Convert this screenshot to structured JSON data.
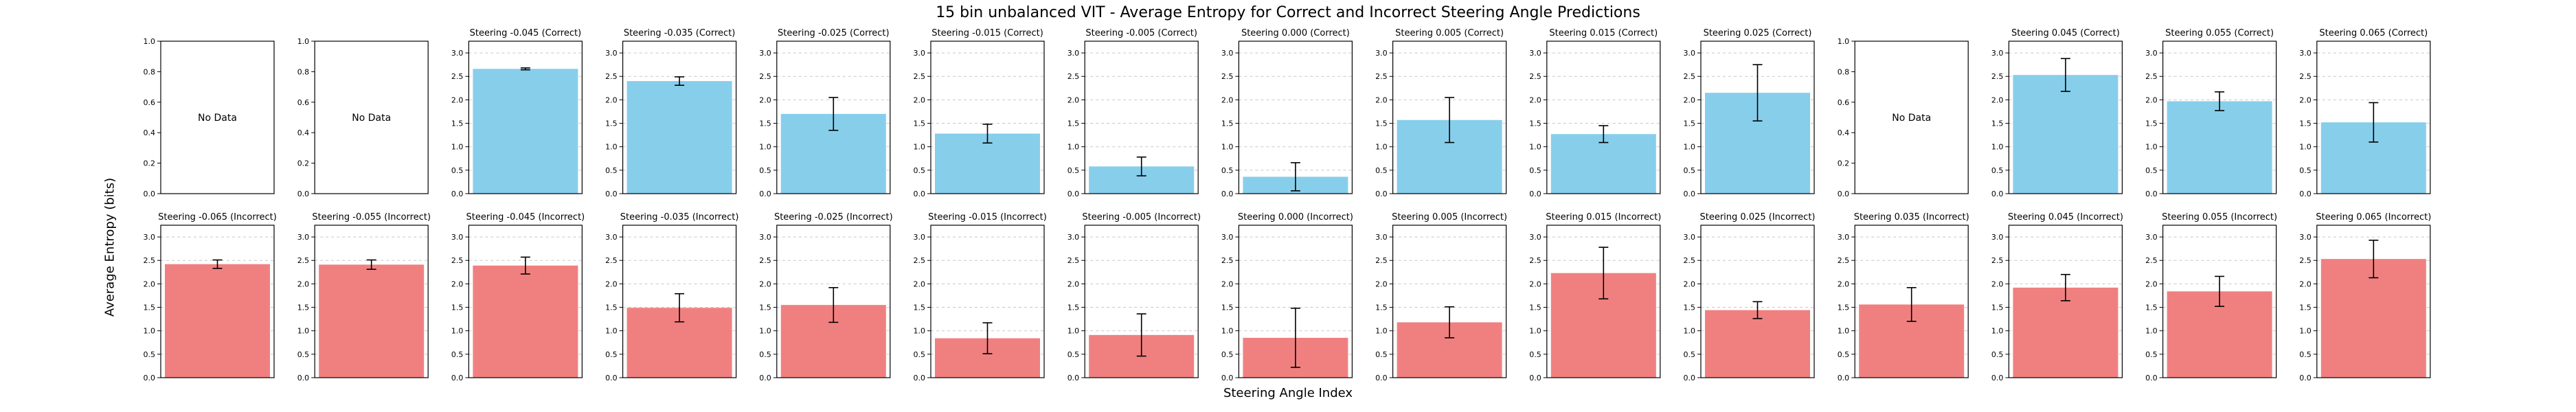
{
  "figure": {
    "title": "15 bin unbalanced VIT - Average Entropy for Correct and Incorrect Steering Angle Predictions",
    "ylabel": "Average Entropy (bits)",
    "xlabel": "Steering Angle Index",
    "no_data_text": "No Data"
  },
  "colors": {
    "correct": "#87ceeb",
    "incorrect": "#f08080",
    "axes": "#000000",
    "grid": "#b0b0b0"
  },
  "chart_data": {
    "type": "bar",
    "layout": "2 rows x 15 subplots, one bar each with error bar",
    "grid": "y dashed",
    "ylim_default": [
      0,
      3.25
    ],
    "ylim_empty": [
      0,
      1.0
    ],
    "yticks_default": [
      0.0,
      0.5,
      1.0,
      1.5,
      2.0,
      2.5,
      3.0
    ],
    "yticks_empty": [
      0.0,
      0.2,
      0.4,
      0.6,
      0.8,
      1.0
    ],
    "rows": [
      {
        "name": "Correct",
        "subplots": [
          {
            "title": "",
            "value": null,
            "err": null
          },
          {
            "title": "",
            "value": null,
            "err": null
          },
          {
            "title": "Steering -0.045 (Correct)",
            "value": 2.66,
            "err": 0.02
          },
          {
            "title": "Steering -0.035 (Correct)",
            "value": 2.4,
            "err": 0.09
          },
          {
            "title": "Steering -0.025 (Correct)",
            "value": 1.7,
            "err": 0.35
          },
          {
            "title": "Steering -0.015 (Correct)",
            "value": 1.28,
            "err": 0.2
          },
          {
            "title": "Steering -0.005 (Correct)",
            "value": 0.58,
            "err": 0.2
          },
          {
            "title": "Steering 0.000 (Correct)",
            "value": 0.36,
            "err": 0.3
          },
          {
            "title": "Steering 0.005 (Correct)",
            "value": 1.57,
            "err": 0.48
          },
          {
            "title": "Steering 0.015 (Correct)",
            "value": 1.27,
            "err": 0.18
          },
          {
            "title": "Steering 0.025 (Correct)",
            "value": 2.15,
            "err": 0.6
          },
          {
            "title": "",
            "value": null,
            "err": null
          },
          {
            "title": "Steering 0.045 (Correct)",
            "value": 2.53,
            "err": 0.35
          },
          {
            "title": "Steering 0.055 (Correct)",
            "value": 1.97,
            "err": 0.2
          },
          {
            "title": "Steering 0.065 (Correct)",
            "value": 1.52,
            "err": 0.42
          }
        ]
      },
      {
        "name": "Incorrect",
        "subplots": [
          {
            "title": "Steering -0.065 (Incorrect)",
            "value": 2.42,
            "err": 0.09
          },
          {
            "title": "Steering -0.055 (Incorrect)",
            "value": 2.41,
            "err": 0.1
          },
          {
            "title": "Steering -0.045 (Incorrect)",
            "value": 2.39,
            "err": 0.18
          },
          {
            "title": "Steering -0.035 (Incorrect)",
            "value": 1.49,
            "err": 0.3
          },
          {
            "title": "Steering -0.025 (Incorrect)",
            "value": 1.55,
            "err": 0.37
          },
          {
            "title": "Steering -0.015 (Incorrect)",
            "value": 0.84,
            "err": 0.33
          },
          {
            "title": "Steering -0.005 (Incorrect)",
            "value": 0.91,
            "err": 0.45
          },
          {
            "title": "Steering 0.000 (Incorrect)",
            "value": 0.85,
            "err": 0.63
          },
          {
            "title": "Steering 0.005 (Incorrect)",
            "value": 1.18,
            "err": 0.33
          },
          {
            "title": "Steering 0.015 (Incorrect)",
            "value": 2.23,
            "err": 0.55
          },
          {
            "title": "Steering 0.025 (Incorrect)",
            "value": 1.44,
            "err": 0.18
          },
          {
            "title": "Steering 0.035 (Incorrect)",
            "value": 1.56,
            "err": 0.36
          },
          {
            "title": "Steering 0.045 (Incorrect)",
            "value": 1.92,
            "err": 0.28
          },
          {
            "title": "Steering 0.055 (Incorrect)",
            "value": 1.84,
            "err": 0.32
          },
          {
            "title": "Steering 0.065 (Incorrect)",
            "value": 2.53,
            "err": 0.4
          }
        ]
      }
    ]
  }
}
